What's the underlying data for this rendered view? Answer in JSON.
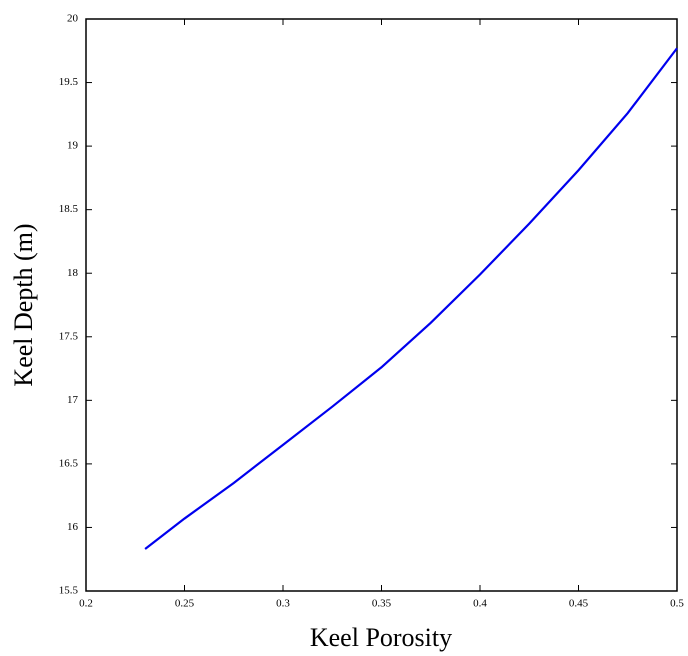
{
  "chart_data": {
    "type": "line",
    "xlabel": "Keel Porosity",
    "ylabel": "Keel Depth (m)",
    "x": [
      0.23,
      0.25,
      0.275,
      0.3,
      0.325,
      0.35,
      0.375,
      0.4,
      0.425,
      0.45,
      0.475,
      0.5
    ],
    "series": [
      {
        "name": "Keel Depth",
        "color": "#0000ee",
        "values": [
          15.83,
          16.07,
          16.35,
          16.65,
          16.95,
          17.26,
          17.61,
          17.99,
          18.39,
          18.81,
          19.26,
          19.77
        ]
      }
    ],
    "xlim": [
      0.2,
      0.5
    ],
    "xticks": [
      0.2,
      0.25,
      0.3,
      0.35,
      0.4,
      0.45,
      0.5
    ],
    "ylim": [
      15.5,
      20
    ],
    "yticks": [
      15.5,
      16,
      16.5,
      17,
      17.5,
      18,
      18.5,
      19,
      19.5,
      20
    ],
    "grid": false
  }
}
